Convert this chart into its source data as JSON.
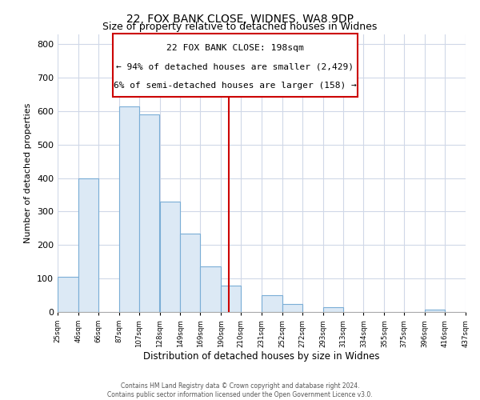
{
  "title": "22, FOX BANK CLOSE, WIDNES, WA8 9DP",
  "subtitle": "Size of property relative to detached houses in Widnes",
  "xlabel": "Distribution of detached houses by size in Widnes",
  "ylabel": "Number of detached properties",
  "bin_edges": [
    25,
    46,
    66,
    87,
    107,
    128,
    149,
    169,
    190,
    210,
    231,
    252,
    272,
    293,
    313,
    334,
    355,
    375,
    396,
    416,
    437
  ],
  "bar_heights": [
    105,
    400,
    0,
    615,
    590,
    330,
    235,
    135,
    78,
    0,
    50,
    25,
    0,
    15,
    0,
    0,
    0,
    0,
    7,
    0
  ],
  "bar_fill_color": "#dce9f5",
  "bar_edge_color": "#7aaed6",
  "ylim": [
    0,
    830
  ],
  "yticks": [
    0,
    100,
    200,
    300,
    400,
    500,
    600,
    700,
    800
  ],
  "vline_x": 198,
  "vline_color": "#cc0000",
  "annotation_title": "22 FOX BANK CLOSE: 198sqm",
  "annotation_line1": "← 94% of detached houses are smaller (2,429)",
  "annotation_line2": "6% of semi-detached houses are larger (158) →",
  "footer1": "Contains HM Land Registry data © Crown copyright and database right 2024.",
  "footer2": "Contains public sector information licensed under the Open Government Licence v3.0.",
  "bg_color": "#ffffff",
  "plot_bg_color": "#ffffff",
  "grid_color": "#d0d8e8",
  "tick_labels": [
    "25sqm",
    "46sqm",
    "66sqm",
    "87sqm",
    "107sqm",
    "128sqm",
    "149sqm",
    "169sqm",
    "190sqm",
    "210sqm",
    "231sqm",
    "252sqm",
    "272sqm",
    "293sqm",
    "313sqm",
    "334sqm",
    "355sqm",
    "375sqm",
    "396sqm",
    "416sqm",
    "437sqm"
  ],
  "title_fontsize": 10,
  "subtitle_fontsize": 9
}
